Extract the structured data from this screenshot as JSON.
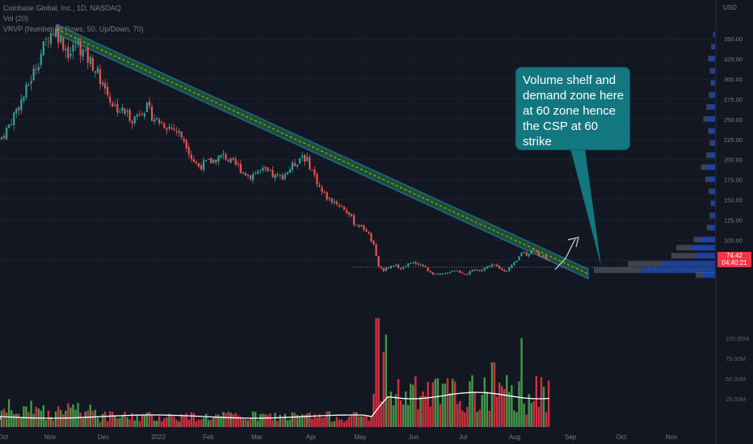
{
  "legend": {
    "symbol": "Coinbase Global, Inc., 1D, NASDAQ",
    "vol": "Vol (20)",
    "vrvp": "VRVP (Number Of Rows, 50, Up/Down, 70)"
  },
  "currency": "USD",
  "last_price": {
    "value": "74.42",
    "countdown": "04:40:21",
    "color": "#f23645"
  },
  "annotation": {
    "text": "Volume shelf and\ndemand zone here\nat 60 zone hence\nthe CSP at 60\nstrike",
    "background": "#127781"
  },
  "colors": {
    "up": "#26a69a",
    "down": "#ef5350",
    "vol_up": "#4caf50",
    "vol_down": "#f23645",
    "profile": "#2962ff",
    "channel": "#4caf50",
    "background": "#131722"
  },
  "chart_data": {
    "type": "candlestick",
    "x_labels": [
      "Oct",
      "Nov",
      "Dec",
      "2022",
      "Feb",
      "Mar",
      "Apr",
      "May",
      "Jun",
      "Jul",
      "Aug",
      "Sep",
      "Oct",
      "Nov"
    ],
    "price_axis": [
      "350.00",
      "325.00",
      "300.00",
      "275.00",
      "250.00",
      "225.00",
      "200.00",
      "175.00",
      "150.00",
      "125.00",
      "100.00",
      "75.00"
    ],
    "volume_axis": [
      "100.00M",
      "75.00M",
      "50.00M",
      "25.00M"
    ],
    "ylim": [
      55,
      370
    ],
    "close_path": [
      [
        0,
        225
      ],
      [
        10,
        240
      ],
      [
        20,
        262
      ],
      [
        30,
        280
      ],
      [
        40,
        305
      ],
      [
        50,
        330
      ],
      [
        60,
        355
      ],
      [
        68,
        362
      ],
      [
        78,
        345
      ],
      [
        86,
        330
      ],
      [
        95,
        345
      ],
      [
        105,
        330
      ],
      [
        115,
        318
      ],
      [
        125,
        300
      ],
      [
        133,
        282
      ],
      [
        140,
        268
      ],
      [
        148,
        262
      ],
      [
        156,
        258
      ],
      [
        165,
        250
      ],
      [
        174,
        262
      ],
      [
        182,
        264
      ],
      [
        190,
        252
      ],
      [
        200,
        246
      ],
      [
        210,
        240
      ],
      [
        220,
        235
      ],
      [
        230,
        222
      ],
      [
        238,
        200
      ],
      [
        246,
        192
      ],
      [
        254,
        195
      ],
      [
        262,
        198
      ],
      [
        270,
        202
      ],
      [
        278,
        205
      ],
      [
        286,
        196
      ],
      [
        294,
        192
      ],
      [
        302,
        184
      ],
      [
        310,
        180
      ],
      [
        318,
        185
      ],
      [
        326,
        186
      ],
      [
        334,
        182
      ],
      [
        342,
        178
      ],
      [
        350,
        180
      ],
      [
        358,
        188
      ],
      [
        366,
        196
      ],
      [
        374,
        206
      ],
      [
        382,
        196
      ],
      [
        390,
        178
      ],
      [
        398,
        160
      ],
      [
        406,
        152
      ],
      [
        414,
        148
      ],
      [
        422,
        142
      ],
      [
        430,
        135
      ],
      [
        438,
        122
      ],
      [
        446,
        117
      ],
      [
        454,
        112
      ],
      [
        462,
        94
      ],
      [
        468,
        68
      ],
      [
        474,
        62
      ],
      [
        482,
        66
      ],
      [
        490,
        68
      ],
      [
        498,
        65
      ],
      [
        506,
        70
      ],
      [
        514,
        72
      ],
      [
        522,
        69
      ],
      [
        530,
        62
      ],
      [
        538,
        58
      ],
      [
        546,
        56
      ],
      [
        554,
        60
      ],
      [
        562,
        63
      ],
      [
        570,
        60
      ],
      [
        578,
        58
      ],
      [
        586,
        62
      ],
      [
        594,
        63
      ],
      [
        602,
        66
      ],
      [
        610,
        70
      ],
      [
        618,
        64
      ],
      [
        626,
        62
      ],
      [
        634,
        68
      ],
      [
        640,
        74
      ],
      [
        646,
        86
      ],
      [
        652,
        82
      ],
      [
        658,
        88
      ],
      [
        664,
        84
      ],
      [
        670,
        80
      ],
      [
        676,
        78
      ],
      [
        680,
        74
      ]
    ],
    "volume_profile_rows": [
      {
        "price": 355,
        "up": 3,
        "down": 1
      },
      {
        "price": 340,
        "up": 6,
        "down": 2
      },
      {
        "price": 325,
        "up": 10,
        "down": 4
      },
      {
        "price": 310,
        "up": 8,
        "down": 3
      },
      {
        "price": 295,
        "up": 6,
        "down": 3
      },
      {
        "price": 280,
        "up": 9,
        "down": 4
      },
      {
        "price": 265,
        "up": 12,
        "down": 6
      },
      {
        "price": 250,
        "up": 16,
        "down": 8
      },
      {
        "price": 235,
        "up": 10,
        "down": 4
      },
      {
        "price": 220,
        "up": 8,
        "down": 3
      },
      {
        "price": 205,
        "up": 12,
        "down": 6
      },
      {
        "price": 190,
        "up": 20,
        "down": 9
      },
      {
        "price": 175,
        "up": 14,
        "down": 6
      },
      {
        "price": 160,
        "up": 9,
        "down": 4
      },
      {
        "price": 145,
        "up": 6,
        "down": 3
      },
      {
        "price": 130,
        "up": 8,
        "down": 3
      },
      {
        "price": 115,
        "up": 12,
        "down": 5
      },
      {
        "price": 100,
        "up": 30,
        "down": 14
      },
      {
        "price": 90,
        "up": 50,
        "down": 30
      },
      {
        "price": 80,
        "up": 40,
        "down": 50
      },
      {
        "price": 70,
        "up": 110,
        "down": 70
      },
      {
        "price": 62,
        "up": 150,
        "down": 100
      },
      {
        "price": 56,
        "up": 25,
        "down": 15
      }
    ],
    "trendline": {
      "from": [
        70,
        362
      ],
      "to": [
        728,
        58
      ]
    },
    "arrow": {
      "from": [
        690,
        62
      ],
      "to": [
        716,
        92
      ]
    },
    "last_close": 74.42
  }
}
